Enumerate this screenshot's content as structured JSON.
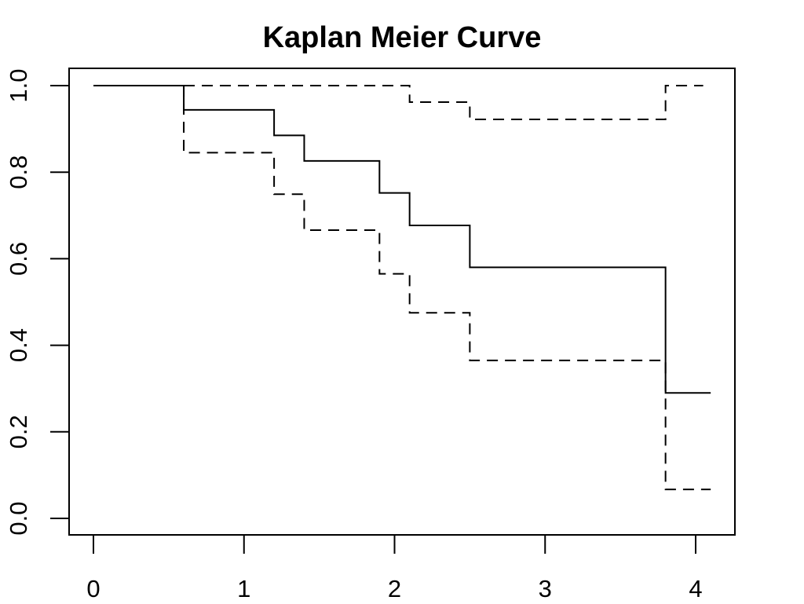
{
  "chart_data": {
    "type": "line",
    "title": "Kaplan Meier Curve",
    "xlabel": "",
    "ylabel": "",
    "xlim": [
      0,
      4
    ],
    "ylim": [
      0,
      1
    ],
    "x_ticks": [
      0,
      1,
      2,
      3,
      4
    ],
    "x_tick_labels": [
      "0",
      "1",
      "2",
      "3",
      "4"
    ],
    "y_ticks": [
      0,
      0.2,
      0.4,
      0.6,
      0.8,
      1.0
    ],
    "y_tick_labels": [
      "0.0",
      "0.2",
      "0.4",
      "0.6",
      "0.8",
      "1.0"
    ],
    "grid": false,
    "series": [
      {
        "style": "solid",
        "color": "#000000",
        "steps": [
          [
            0,
            1.0
          ],
          [
            0.6,
            0.944
          ],
          [
            1.2,
            0.885
          ],
          [
            1.4,
            0.826
          ],
          [
            1.9,
            0.752
          ],
          [
            2.1,
            0.677
          ],
          [
            2.5,
            0.58
          ],
          [
            3.8,
            0.29
          ]
        ],
        "x_end": 4.1
      },
      {
        "style": "dashed",
        "color": "#000000",
        "steps": [
          [
            0,
            1.0
          ],
          [
            0.6,
            0.845
          ],
          [
            1.2,
            0.749
          ],
          [
            1.4,
            0.666
          ],
          [
            1.9,
            0.565
          ],
          [
            2.1,
            0.475
          ],
          [
            2.5,
            0.365
          ],
          [
            3.8,
            0.067
          ]
        ],
        "x_end": 4.1
      },
      {
        "style": "dashed",
        "color": "#000000",
        "steps": [
          [
            0,
            1.0
          ],
          [
            2.1,
            0.962
          ],
          [
            2.5,
            0.922
          ],
          [
            3.8,
            1.0
          ]
        ],
        "x_end": 4.05
      }
    ]
  }
}
